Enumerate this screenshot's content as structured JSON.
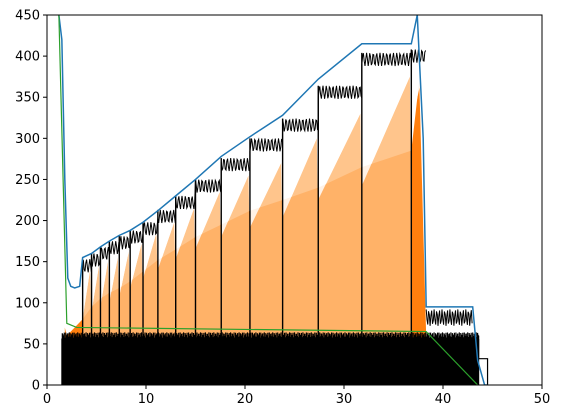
{
  "chart_data": {
    "type": "area",
    "title": "",
    "xlabel": "",
    "ylabel": "",
    "xlim": [
      0,
      50
    ],
    "ylim": [
      0,
      450
    ],
    "grid": false,
    "legend": "none",
    "x_ticks": [
      0,
      10,
      20,
      30,
      40,
      50
    ],
    "y_ticks": [
      0,
      50,
      100,
      150,
      200,
      250,
      300,
      350,
      400,
      450
    ],
    "x_tick_labels": [
      "0",
      "10",
      "20",
      "30",
      "40",
      "50"
    ],
    "y_tick_labels": [
      "0",
      "50",
      "100",
      "150",
      "200",
      "250",
      "300",
      "350",
      "400",
      "450"
    ],
    "step_edges": [
      3.6,
      4.5,
      5.4,
      6.3,
      7.3,
      8.4,
      9.7,
      11.2,
      13.0,
      15.0,
      17.6,
      20.5,
      23.8,
      27.4,
      31.8,
      36.8,
      38.3
    ],
    "step_levels": [
      145,
      152,
      160,
      167,
      173,
      180,
      190,
      205,
      222,
      242,
      268,
      292,
      316,
      356,
      396,
      400
    ],
    "series": [
      {
        "color": "#1f77b4",
        "role": "upper envelope",
        "x": [
          1.2,
          1.5,
          1.8,
          2.1,
          2.4,
          2.8,
          3.3,
          3.6,
          4.5,
          5.4,
          6.3,
          7.3,
          8.4,
          9.7,
          11.2,
          13.0,
          15.0,
          17.6,
          20.5,
          23.8,
          27.4,
          31.8,
          36.8,
          37.4,
          38.0,
          38.3,
          43.0,
          43.5,
          44.2,
          44.5
        ],
        "y": [
          450,
          420,
          250,
          130,
          120,
          118,
          120,
          155,
          160,
          168,
          175,
          182,
          188,
          198,
          212,
          230,
          250,
          278,
          302,
          328,
          372,
          415,
          415,
          450,
          300,
          95,
          95,
          30,
          0,
          0
        ]
      },
      {
        "color": "#ff7f0e",
        "role": "filled band upper bound",
        "x": [
          1.8,
          2.0,
          3.6,
          4.5,
          5.4,
          6.3,
          7.3,
          8.4,
          9.7,
          11.2,
          13.0,
          15.0,
          17.6,
          20.5,
          23.8,
          27.4,
          31.8,
          36.8,
          37.6,
          38.3
        ],
        "y": [
          70,
          60,
          80,
          95,
          105,
          112,
          118,
          126,
          138,
          152,
          165,
          180,
          195,
          212,
          225,
          240,
          265,
          285,
          370,
          60
        ]
      },
      {
        "color": "#ffbb78",
        "role": "light band peaks",
        "x": [
          4.5,
          5.4,
          6.3,
          7.3,
          8.4,
          9.7,
          11.2,
          13.0,
          15.0,
          17.6,
          20.5,
          23.8,
          27.4,
          31.8,
          36.8
        ],
        "y": [
          140,
          145,
          150,
          155,
          162,
          172,
          185,
          198,
          215,
          235,
          255,
          270,
          300,
          330,
          375
        ]
      },
      {
        "color": "#2ca02c",
        "role": "baseline",
        "x": [
          1.2,
          2.0,
          3.0,
          38.3,
          43.5
        ],
        "y": [
          450,
          75,
          70,
          65,
          0
        ]
      },
      {
        "color": "#000000",
        "role": "black oscillating signal",
        "x": [
          1.5,
          43.6,
          44.5
        ],
        "y": [
          60,
          60,
          0
        ]
      }
    ]
  }
}
